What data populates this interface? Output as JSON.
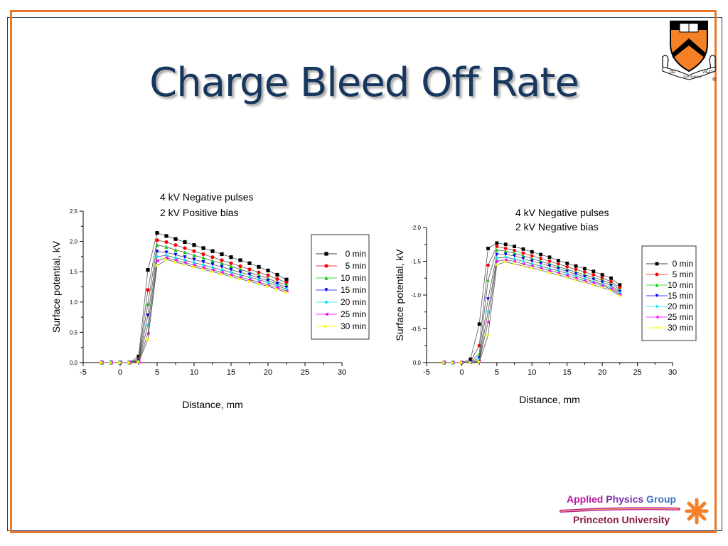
{
  "slide": {
    "title": "Charge Bleed Off Rate",
    "colors": {
      "frame": "#e8782a",
      "inner_border": "#1f3864",
      "title": "#17375e"
    },
    "logo": {
      "icon": "princeton-shield-crest-icon",
      "banner_left": "DEI",
      "banner_mid": "SUB NUMINE",
      "banner_right": "VIGET",
      "registered": "®"
    },
    "footer": {
      "line1_words": [
        {
          "text": "Applied",
          "color": "#b5179e"
        },
        {
          "text": " Physics",
          "color": "#7a2fa8"
        },
        {
          "text": " Group",
          "color": "#3a6fc4"
        }
      ],
      "line2_words": [
        {
          "text": "Princeton",
          "color": "#8b1a4a"
        },
        {
          "text": " University",
          "color": "#8b1a4a"
        }
      ],
      "icon": "orange-asterisk-burst-icon"
    }
  },
  "chart_data": [
    {
      "type": "line",
      "annotation": [
        "4 kV Negative pulses",
        "2 kV Positive bias"
      ],
      "xlabel": "Distance, mm",
      "ylabel": "Surface potential, kV",
      "xlim": [
        -5,
        30
      ],
      "ylim": [
        0,
        2.5
      ],
      "y_inverted": false,
      "xticks": [
        "-5",
        "0",
        "5",
        "10",
        "15",
        "20",
        "25",
        "30"
      ],
      "yticks": [
        "0.0",
        "0.5",
        "1.0",
        "1.5",
        "2.0",
        "2.5"
      ],
      "legend_position": "right",
      "x": [
        -2.5,
        -1.25,
        0,
        1.25,
        2.5,
        3.75,
        5,
        6.25,
        7.5,
        8.75,
        10,
        11.25,
        12.5,
        13.75,
        15,
        16.25,
        17.5,
        18.75,
        20,
        21.25,
        22.5
      ],
      "series": [
        {
          "name": "0 min",
          "marker": "square",
          "color": "#000000",
          "values": [
            0,
            0,
            0,
            0,
            0.1,
            1.53,
            2.14,
            2.09,
            2.04,
            1.99,
            1.94,
            1.89,
            1.84,
            1.79,
            1.74,
            1.69,
            1.64,
            1.58,
            1.52,
            1.45,
            1.37
          ]
        },
        {
          "name": "5 min",
          "marker": "circle",
          "color": "#ff0000",
          "values": [
            0,
            0,
            0,
            0,
            0.06,
            1.2,
            2.02,
            1.99,
            1.94,
            1.89,
            1.84,
            1.79,
            1.74,
            1.69,
            1.64,
            1.59,
            1.54,
            1.49,
            1.44,
            1.38,
            1.32
          ]
        },
        {
          "name": "10 min",
          "marker": "triangle-up",
          "color": "#00cc00",
          "values": [
            0,
            0,
            0,
            0,
            0.04,
            0.97,
            1.94,
            1.91,
            1.86,
            1.82,
            1.77,
            1.73,
            1.68,
            1.64,
            1.59,
            1.54,
            1.49,
            1.44,
            1.39,
            1.33,
            1.28
          ]
        },
        {
          "name": "15 min",
          "marker": "triangle-down",
          "color": "#0000ff",
          "values": [
            0,
            0,
            0,
            0,
            0.03,
            0.78,
            1.83,
            1.82,
            1.78,
            1.74,
            1.7,
            1.66,
            1.62,
            1.58,
            1.53,
            1.49,
            1.45,
            1.4,
            1.35,
            1.3,
            1.24
          ]
        },
        {
          "name": "20 min",
          "marker": "diamond",
          "color": "#00e5ff",
          "values": [
            0,
            0,
            0,
            0,
            0.02,
            0.62,
            1.75,
            1.77,
            1.73,
            1.69,
            1.65,
            1.61,
            1.57,
            1.53,
            1.49,
            1.45,
            1.41,
            1.37,
            1.32,
            1.27,
            1.21
          ]
        },
        {
          "name": "25 min",
          "marker": "triangle-left",
          "color": "#ff00ff",
          "values": [
            0,
            0,
            0,
            0,
            0.01,
            0.48,
            1.68,
            1.73,
            1.69,
            1.65,
            1.61,
            1.57,
            1.53,
            1.49,
            1.45,
            1.41,
            1.37,
            1.33,
            1.28,
            1.24,
            1.18
          ]
        },
        {
          "name": "30 min",
          "marker": "triangle-right",
          "color": "#ffff00",
          "values": [
            0,
            0,
            0,
            0,
            0.01,
            0.38,
            1.6,
            1.7,
            1.66,
            1.62,
            1.58,
            1.54,
            1.5,
            1.46,
            1.42,
            1.38,
            1.34,
            1.3,
            1.26,
            1.21,
            1.16
          ]
        }
      ]
    },
    {
      "type": "line",
      "annotation": [
        "4 kV Negative pulses",
        "2 kV Negative bias"
      ],
      "xlabel": "Distance, mm",
      "ylabel": "Surface potential, kV",
      "xlim": [
        -5,
        30
      ],
      "ylim": [
        0,
        -2.0
      ],
      "y_inverted": true,
      "xticks": [
        "-5",
        "0",
        "5",
        "10",
        "15",
        "20",
        "25",
        "30"
      ],
      "yticks": [
        "0.0",
        "-0.5",
        "-1.0",
        "-1.5",
        "-2.0"
      ],
      "legend_position": "right",
      "x": [
        -2.5,
        -1.25,
        0,
        1.25,
        2.5,
        3.75,
        5,
        6.25,
        7.5,
        8.75,
        10,
        11.25,
        12.5,
        13.75,
        15,
        16.25,
        17.5,
        18.75,
        20,
        21.25,
        22.5
      ],
      "series": [
        {
          "name": "0 min",
          "marker": "square",
          "color": "#000000",
          "values": [
            0,
            0,
            0,
            -0.05,
            -0.57,
            -1.69,
            -1.77,
            -1.75,
            -1.72,
            -1.68,
            -1.64,
            -1.6,
            -1.56,
            -1.51,
            -1.47,
            -1.43,
            -1.39,
            -1.35,
            -1.3,
            -1.25,
            -1.15
          ]
        },
        {
          "name": "5 min",
          "marker": "circle",
          "color": "#ff0000",
          "values": [
            0,
            0,
            0,
            -0.02,
            -0.25,
            -1.44,
            -1.72,
            -1.69,
            -1.66,
            -1.62,
            -1.58,
            -1.54,
            -1.5,
            -1.46,
            -1.42,
            -1.38,
            -1.34,
            -1.3,
            -1.25,
            -1.2,
            -1.11
          ]
        },
        {
          "name": "10 min",
          "marker": "triangle-up",
          "color": "#00cc00",
          "values": [
            0,
            0,
            0,
            -0.01,
            -0.13,
            -1.22,
            -1.67,
            -1.65,
            -1.62,
            -1.58,
            -1.54,
            -1.5,
            -1.46,
            -1.42,
            -1.38,
            -1.34,
            -1.3,
            -1.26,
            -1.22,
            -1.17,
            -1.08
          ]
        },
        {
          "name": "15 min",
          "marker": "triangle-down",
          "color": "#0000ff",
          "values": [
            0,
            0,
            0,
            -0.01,
            -0.07,
            -0.94,
            -1.6,
            -1.6,
            -1.58,
            -1.54,
            -1.5,
            -1.47,
            -1.43,
            -1.39,
            -1.35,
            -1.31,
            -1.27,
            -1.23,
            -1.19,
            -1.14,
            -1.05
          ]
        },
        {
          "name": "20 min",
          "marker": "diamond",
          "color": "#00e5ff",
          "values": [
            0,
            0,
            0,
            0,
            -0.04,
            -0.75,
            -1.55,
            -1.56,
            -1.53,
            -1.5,
            -1.46,
            -1.43,
            -1.39,
            -1.36,
            -1.32,
            -1.28,
            -1.24,
            -1.2,
            -1.16,
            -1.11,
            -1.03
          ]
        },
        {
          "name": "25 min",
          "marker": "triangle-left",
          "color": "#ff00ff",
          "values": [
            0,
            0,
            0,
            0,
            -0.02,
            -0.6,
            -1.5,
            -1.52,
            -1.5,
            -1.46,
            -1.43,
            -1.4,
            -1.36,
            -1.33,
            -1.29,
            -1.25,
            -1.21,
            -1.18,
            -1.14,
            -1.09,
            -1.01
          ]
        },
        {
          "name": "30 min",
          "marker": "triangle-right",
          "color": "#ffff00",
          "values": [
            0,
            0,
            0,
            0,
            -0.01,
            -0.4,
            -1.45,
            -1.49,
            -1.46,
            -1.43,
            -1.4,
            -1.37,
            -1.33,
            -1.3,
            -1.26,
            -1.22,
            -1.19,
            -1.15,
            -1.11,
            -1.07,
            -0.99
          ]
        }
      ]
    }
  ]
}
